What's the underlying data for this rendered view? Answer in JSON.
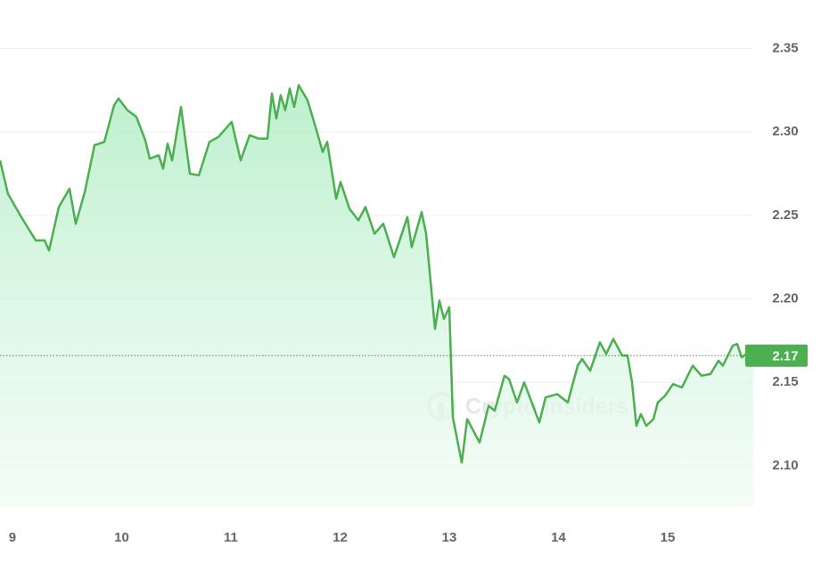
{
  "chart_data": {
    "type": "area",
    "watermark": "Crypto Insiders",
    "color": "#4caf50",
    "x": [
      8.886,
      8.959,
      9.09,
      9.213,
      9.294,
      9.335,
      9.425,
      9.523,
      9.58,
      9.662,
      9.751,
      9.841,
      9.931,
      9.972,
      10.053,
      10.135,
      10.217,
      10.257,
      10.339,
      10.38,
      10.421,
      10.462,
      10.543,
      10.625,
      10.707,
      10.804,
      10.886,
      11.008,
      11.09,
      11.172,
      11.253,
      11.335,
      11.376,
      11.417,
      11.457,
      11.498,
      11.539,
      11.58,
      11.621,
      11.702,
      11.784,
      11.841,
      11.882,
      11.964,
      12.004,
      12.086,
      12.168,
      12.233,
      12.315,
      12.396,
      12.494,
      12.617,
      12.657,
      12.747,
      12.788,
      12.87,
      12.91,
      12.951,
      13.0,
      13.033,
      13.115,
      13.164,
      13.278,
      13.36,
      13.417,
      13.506,
      13.547,
      13.621,
      13.686,
      13.825,
      13.882,
      13.988,
      14.086,
      14.176,
      14.217,
      14.29,
      14.38,
      14.437,
      14.502,
      14.584,
      14.633,
      14.674,
      14.714,
      14.755,
      14.804,
      14.87,
      14.91,
      14.976,
      15.049,
      15.131,
      15.229,
      15.31,
      15.392,
      15.466,
      15.506,
      15.596,
      15.637,
      15.678,
      15.743,
      15.784
    ],
    "values": [
      2.283,
      2.263,
      2.248,
      2.235,
      2.235,
      2.229,
      2.255,
      2.266,
      2.245,
      2.264,
      2.292,
      2.294,
      2.316,
      2.32,
      2.313,
      2.309,
      2.295,
      2.284,
      2.286,
      2.278,
      2.293,
      2.283,
      2.315,
      2.275,
      2.274,
      2.294,
      2.297,
      2.306,
      2.283,
      2.298,
      2.296,
      2.296,
      2.323,
      2.308,
      2.322,
      2.313,
      2.326,
      2.315,
      2.328,
      2.319,
      2.301,
      2.288,
      2.294,
      2.26,
      2.27,
      2.254,
      2.247,
      2.255,
      2.239,
      2.245,
      2.225,
      2.249,
      2.231,
      2.252,
      2.239,
      2.182,
      2.199,
      2.188,
      2.195,
      2.129,
      2.102,
      2.128,
      2.114,
      2.136,
      2.133,
      2.154,
      2.152,
      2.138,
      2.15,
      2.126,
      2.141,
      2.143,
      2.138,
      2.16,
      2.164,
      2.157,
      2.174,
      2.167,
      2.176,
      2.166,
      2.166,
      2.15,
      2.124,
      2.131,
      2.124,
      2.128,
      2.138,
      2.142,
      2.149,
      2.147,
      2.16,
      2.154,
      2.155,
      2.163,
      2.16,
      2.172,
      2.173,
      2.165,
      2.168,
      2.166
    ],
    "last_price": {
      "value": 2.166,
      "label": "2.17"
    },
    "xlim": [
      8.886,
      15.784
    ],
    "xticks": [
      9,
      10,
      11,
      12,
      13,
      14,
      15
    ],
    "ylim": [
      2.076,
      2.379
    ],
    "yticks": [
      {
        "value": 2.1,
        "label": "2.10"
      },
      2.15,
      {
        "value": 2.2,
        "label": "2.20"
      },
      2.25,
      {
        "value": 2.3,
        "label": "2.30"
      },
      2.35
    ],
    "grid": true
  }
}
